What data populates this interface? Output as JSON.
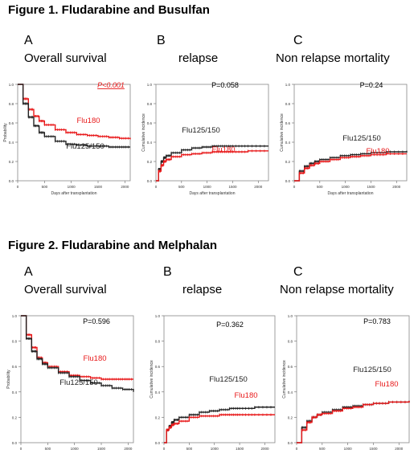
{
  "figures": [
    {
      "title": "Figure 1. Fludarabine and Busulfan",
      "panels": [
        {
          "letter": "A",
          "name": "Overall survival"
        },
        {
          "letter": "B",
          "name": "relapse"
        },
        {
          "letter": "C",
          "name": "Non relapse mortality"
        }
      ]
    },
    {
      "title": "Figure 2. Fludarabine and Melphalan",
      "panels": [
        {
          "letter": "A",
          "name": "Overall survival"
        },
        {
          "letter": "B",
          "name": "relapse"
        },
        {
          "letter": "C",
          "name": "Non relapse mortality"
        }
      ]
    }
  ],
  "colors": {
    "flu180": "#e8191a",
    "flu125_150": "#222222"
  },
  "chart_data": [
    {
      "type": "line",
      "title": "",
      "xlabel": "Days after transplantation",
      "ylabel": "Probability",
      "xlim": [
        0,
        2100
      ],
      "ylim": [
        0,
        1.0
      ],
      "xticks": [
        "0",
        "500",
        "1000",
        "1500",
        "2000"
      ],
      "yticks": [
        "0.0",
        "0.2",
        "0.4",
        "0.6",
        "0.8",
        "1.0"
      ],
      "annotation": "P<0.001",
      "series": [
        {
          "name": "Flu180",
          "x": [
            0,
            100,
            200,
            300,
            400,
            500,
            700,
            900,
            1100,
            1300,
            1500,
            1700,
            1900,
            2100
          ],
          "y": [
            1.0,
            0.85,
            0.74,
            0.67,
            0.62,
            0.58,
            0.53,
            0.5,
            0.48,
            0.47,
            0.46,
            0.45,
            0.44,
            0.43
          ]
        },
        {
          "name": "Flu125/150",
          "x": [
            0,
            100,
            200,
            300,
            400,
            500,
            700,
            900,
            1100,
            1300,
            1500,
            1700,
            1900,
            2100
          ],
          "y": [
            1.0,
            0.8,
            0.66,
            0.57,
            0.5,
            0.46,
            0.41,
            0.38,
            0.37,
            0.36,
            0.36,
            0.35,
            0.35,
            0.35
          ]
        }
      ]
    },
    {
      "type": "line",
      "title": "",
      "xlabel": "Days after transplantation",
      "ylabel": "Cumulative incidence",
      "xlim": [
        0,
        2200
      ],
      "ylim": [
        0,
        1.0
      ],
      "xticks": [
        "0",
        "500",
        "1000",
        "1500",
        "2000"
      ],
      "yticks": [
        "0.0",
        "0.2",
        "0.4",
        "0.6",
        "0.8",
        "1.0"
      ],
      "annotation": "P=0.058",
      "series": [
        {
          "name": "Flu125/150",
          "x": [
            0,
            50,
            100,
            150,
            200,
            300,
            500,
            700,
            900,
            1100,
            1300,
            1500,
            1800,
            2200
          ],
          "y": [
            0,
            0.12,
            0.2,
            0.24,
            0.26,
            0.29,
            0.32,
            0.34,
            0.35,
            0.36,
            0.36,
            0.36,
            0.36,
            0.36
          ]
        },
        {
          "name": "Flu180",
          "x": [
            0,
            50,
            100,
            150,
            200,
            300,
            500,
            700,
            900,
            1100,
            1300,
            1500,
            1800,
            2200
          ],
          "y": [
            0,
            0.1,
            0.16,
            0.2,
            0.22,
            0.25,
            0.27,
            0.28,
            0.29,
            0.3,
            0.3,
            0.3,
            0.31,
            0.31
          ]
        }
      ]
    },
    {
      "type": "line",
      "title": "",
      "xlabel": "Days after transplantation",
      "ylabel": "Cumulative incidence",
      "xlim": [
        0,
        2200
      ],
      "ylim": [
        0,
        1.0
      ],
      "xticks": [
        "0",
        "500",
        "1000",
        "1500",
        "2000"
      ],
      "yticks": [
        "0.0",
        "0.2",
        "0.4",
        "0.6",
        "0.8",
        "1.0"
      ],
      "annotation": "P=0.24",
      "series": [
        {
          "name": "Flu125/150",
          "x": [
            0,
            100,
            200,
            300,
            400,
            500,
            700,
            900,
            1100,
            1300,
            1500,
            1800,
            2200
          ],
          "y": [
            0,
            0.1,
            0.15,
            0.18,
            0.2,
            0.22,
            0.24,
            0.26,
            0.27,
            0.28,
            0.29,
            0.3,
            0.31
          ]
        },
        {
          "name": "Flu180",
          "x": [
            0,
            100,
            200,
            300,
            400,
            500,
            700,
            900,
            1100,
            1300,
            1500,
            1800,
            2200
          ],
          "y": [
            0,
            0.08,
            0.13,
            0.16,
            0.18,
            0.2,
            0.22,
            0.24,
            0.25,
            0.26,
            0.27,
            0.28,
            0.28
          ]
        }
      ]
    },
    {
      "type": "line",
      "title": "",
      "xlabel": "",
      "ylabel": "Probability",
      "xlim": [
        0,
        2100
      ],
      "ylim": [
        0,
        1.0
      ],
      "xticks": [
        "0",
        "500",
        "1000",
        "1500",
        "2000"
      ],
      "yticks": [
        "0.0",
        "0.2",
        "0.4",
        "0.6",
        "0.8",
        "1.0"
      ],
      "annotation": "P=0.596",
      "series": [
        {
          "name": "Flu180",
          "x": [
            0,
            100,
            200,
            300,
            400,
            500,
            700,
            900,
            1100,
            1300,
            1500,
            1700,
            1900,
            2100
          ],
          "y": [
            1.0,
            0.85,
            0.75,
            0.67,
            0.63,
            0.6,
            0.56,
            0.53,
            0.52,
            0.51,
            0.5,
            0.5,
            0.5,
            0.5
          ]
        },
        {
          "name": "Flu125/150",
          "x": [
            0,
            100,
            200,
            300,
            400,
            500,
            700,
            900,
            1100,
            1300,
            1500,
            1700,
            1900,
            2100
          ],
          "y": [
            1.0,
            0.82,
            0.72,
            0.66,
            0.62,
            0.59,
            0.55,
            0.52,
            0.49,
            0.47,
            0.45,
            0.43,
            0.42,
            0.4
          ]
        }
      ]
    },
    {
      "type": "line",
      "title": "",
      "xlabel": "",
      "ylabel": "Cumulative incidence",
      "xlim": [
        0,
        2200
      ],
      "ylim": [
        0,
        1.0
      ],
      "xticks": [
        "0",
        "500",
        "1000",
        "1500",
        "2000"
      ],
      "yticks": [
        "0.0",
        "0.2",
        "0.4",
        "0.6",
        "0.8",
        "1.0"
      ],
      "annotation": "P=0.362",
      "series": [
        {
          "name": "Flu125/150",
          "x": [
            0,
            50,
            100,
            150,
            200,
            300,
            500,
            700,
            900,
            1100,
            1300,
            1500,
            1800,
            2200
          ],
          "y": [
            0,
            0.1,
            0.13,
            0.16,
            0.18,
            0.2,
            0.22,
            0.24,
            0.25,
            0.26,
            0.27,
            0.27,
            0.28,
            0.28
          ]
        },
        {
          "name": "Flu180",
          "x": [
            0,
            50,
            100,
            150,
            200,
            300,
            500,
            700,
            900,
            1100,
            1300,
            1500,
            1800,
            2200
          ],
          "y": [
            0,
            0.1,
            0.12,
            0.14,
            0.15,
            0.17,
            0.2,
            0.21,
            0.21,
            0.22,
            0.22,
            0.22,
            0.22,
            0.22
          ]
        }
      ]
    },
    {
      "type": "line",
      "title": "",
      "xlabel": "",
      "ylabel": "Cumulative incidence",
      "xlim": [
        0,
        2200
      ],
      "ylim": [
        0,
        1.0
      ],
      "xticks": [
        "0",
        "500",
        "1000",
        "1500",
        "2000"
      ],
      "yticks": [
        "0.0",
        "0.2",
        "0.4",
        "0.6",
        "0.8",
        "1.0"
      ],
      "annotation": "P=0.783",
      "series": [
        {
          "name": "Flu125/150",
          "x": [
            0,
            100,
            200,
            300,
            400,
            500,
            700,
            900,
            1100,
            1300,
            1500,
            1800,
            2200
          ],
          "y": [
            0,
            0.12,
            0.17,
            0.2,
            0.22,
            0.24,
            0.26,
            0.28,
            0.29,
            0.3,
            0.31,
            0.32,
            0.33
          ]
        },
        {
          "name": "Flu180",
          "x": [
            0,
            100,
            200,
            300,
            400,
            500,
            700,
            900,
            1100,
            1300,
            1500,
            1800,
            2200
          ],
          "y": [
            0,
            0.1,
            0.16,
            0.2,
            0.22,
            0.23,
            0.25,
            0.27,
            0.28,
            0.3,
            0.31,
            0.32,
            0.33
          ]
        }
      ]
    }
  ]
}
